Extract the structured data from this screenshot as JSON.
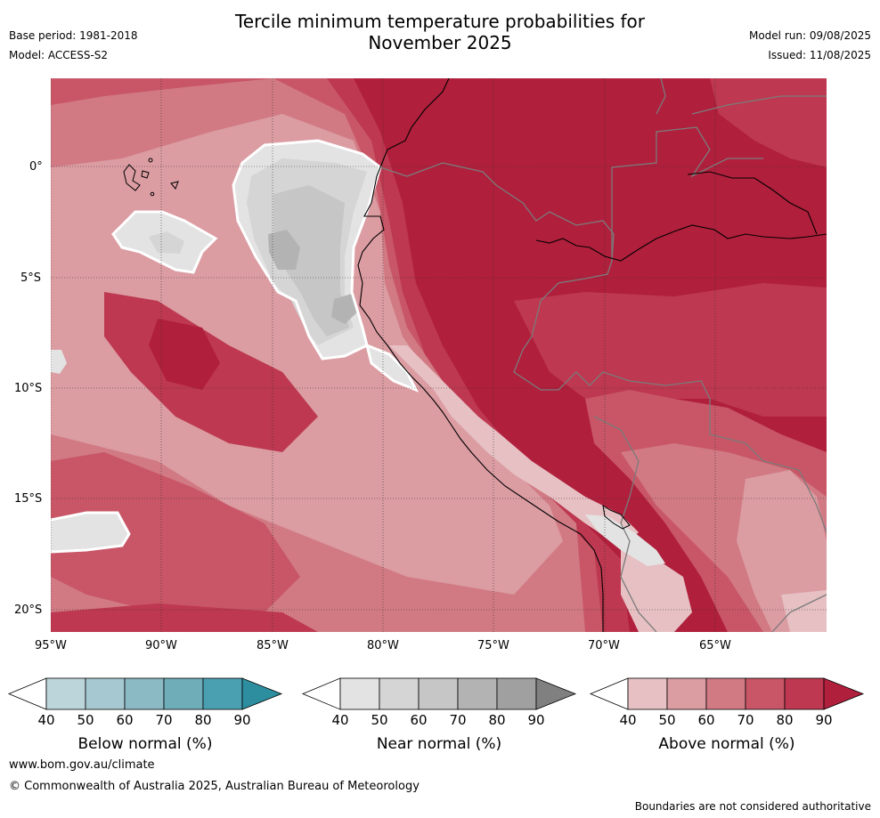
{
  "header": {
    "title_line1": "Tercile minimum temperature probabilities for",
    "title_line2": "November 2025",
    "base_period": "Base period: 1981-2018",
    "model": "Model: ACCESS-S2",
    "model_run": "Model run: 09/08/2025",
    "issued": "Issued: 11/08/2025"
  },
  "map": {
    "lat_labels": [
      "0°",
      "5°S",
      "10°S",
      "15°S",
      "20°S"
    ],
    "lon_labels": [
      "95°W",
      "90°W",
      "85°W",
      "80°W",
      "75°W",
      "70°W",
      "65°W"
    ],
    "colors": {
      "above_90": "#b01f3c",
      "above_80": "#bd3850",
      "above_70": "#c85666",
      "above_60": "#d17a84",
      "above_50": "#db9ca2",
      "above_40": "#e6c0c3",
      "near_40": "#e3e3e3",
      "near_50": "#d5d5d5",
      "near_60": "#c6c6c6",
      "near_70": "#b3b3b3",
      "near_80": "#a0a0a0"
    }
  },
  "colorbars": [
    {
      "name": "below",
      "title": "Below normal (%)",
      "ticks": [
        "40",
        "50",
        "60",
        "70",
        "80",
        "90"
      ],
      "colors": [
        "#ffffff",
        "#bcd5db",
        "#a6c8d0",
        "#8bb9c4",
        "#6fadb9",
        "#4aa0b0",
        "#2c8e9f"
      ]
    },
    {
      "name": "near",
      "title": "Near normal (%)",
      "ticks": [
        "40",
        "50",
        "60",
        "70",
        "80",
        "90"
      ],
      "colors": [
        "#ffffff",
        "#e3e3e3",
        "#d5d5d5",
        "#c6c6c6",
        "#b3b3b3",
        "#a0a0a0",
        "#808080"
      ]
    },
    {
      "name": "above",
      "title": "Above normal (%)",
      "ticks": [
        "40",
        "50",
        "60",
        "70",
        "80",
        "90"
      ],
      "colors": [
        "#ffffff",
        "#e6c0c3",
        "#db9ca2",
        "#d17a84",
        "#c85666",
        "#bd3850",
        "#b01f3c"
      ]
    }
  ],
  "footer": {
    "website": "www.bom.gov.au/climate",
    "copyright": "© Commonwealth of Australia 2025, Australian Bureau of Meteorology",
    "disclaimer": "Boundaries are not considered authoritative"
  }
}
